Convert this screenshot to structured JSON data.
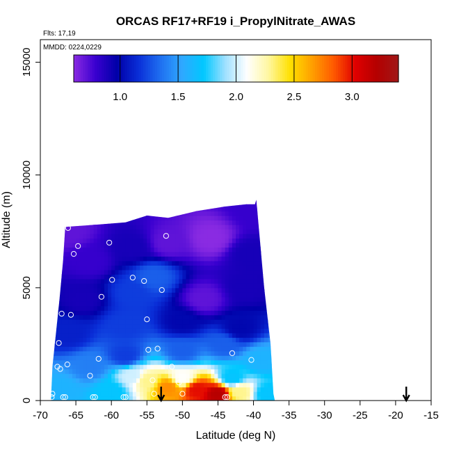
{
  "chart_data": {
    "type": "heatmap",
    "title": "ORCAS RF17+RF19 i_PropylNitrate_AWAS",
    "flights_note": "Flts: 17,19",
    "date_note": "MMDD: 0224,0229",
    "xlabel": "Latitude (deg N)",
    "ylabel": "Altitude (m)",
    "xlim": [
      -70,
      -15
    ],
    "ylim": [
      0,
      16000
    ],
    "x_ticks": [
      "-70",
      "-65",
      "-60",
      "-55",
      "-50",
      "-45",
      "-40",
      "-35",
      "-30",
      "-25",
      "-20",
      "-15"
    ],
    "y_ticks": [
      "0",
      "5000",
      "10000",
      "15000"
    ],
    "colorbar": {
      "range": [
        0.6,
        3.4
      ],
      "ticks": [
        "1.0",
        "1.5",
        "2.0",
        "2.5",
        "3.0"
      ],
      "tick_values": [
        1.0,
        1.5,
        2.0,
        2.5,
        3.0
      ],
      "colors": [
        "#8a2be2",
        "#3a00d0",
        "#0000a8",
        "#0a2fd8",
        "#1f6ff0",
        "#2fa8ff",
        "#00c8ff",
        "#9fe0ff",
        "#ffffff",
        "#fff7a0",
        "#ffe000",
        "#ffa000",
        "#ff5a00",
        "#e00000",
        "#b40000",
        "#a01818"
      ]
    },
    "curtain_outline": [
      [
        -68.5,
        0
      ],
      [
        -68.3,
        1500
      ],
      [
        -67.8,
        3000
      ],
      [
        -67.3,
        4500
      ],
      [
        -66.8,
        6200
      ],
      [
        -66.5,
        7700
      ],
      [
        -62,
        7800
      ],
      [
        -58,
        7900
      ],
      [
        -55,
        8200
      ],
      [
        -52,
        8100
      ],
      [
        -48,
        8400
      ],
      [
        -44,
        8600
      ],
      [
        -41,
        8700
      ],
      [
        -39.8,
        8700
      ],
      [
        -39.6,
        8900
      ],
      [
        -38.5,
        5000
      ],
      [
        -37.6,
        2500
      ],
      [
        -37.2,
        300
      ],
      [
        -37.0,
        0
      ]
    ],
    "field_samples": [
      {
        "lat": -67,
        "alt": 500,
        "value": 1.6
      },
      {
        "lat": -60,
        "alt": 400,
        "value": 1.7
      },
      {
        "lat": -55,
        "alt": 900,
        "value": 2.3
      },
      {
        "lat": -52,
        "alt": 600,
        "value": 2.7
      },
      {
        "lat": -48,
        "alt": 500,
        "value": 3.0
      },
      {
        "lat": -45,
        "alt": 300,
        "value": 3.2
      },
      {
        "lat": -42,
        "alt": 400,
        "value": 2.3
      },
      {
        "lat": -38,
        "alt": 300,
        "value": 1.7
      },
      {
        "lat": -57,
        "alt": 1100,
        "value": 2.0
      },
      {
        "lat": -50,
        "alt": 1000,
        "value": 2.1
      },
      {
        "lat": -43,
        "alt": 1000,
        "value": 1.7
      },
      {
        "lat": -63,
        "alt": 1500,
        "value": 1.4
      },
      {
        "lat": -58,
        "alt": 2000,
        "value": 1.2
      },
      {
        "lat": -50,
        "alt": 2200,
        "value": 1.3
      },
      {
        "lat": -44,
        "alt": 2500,
        "value": 1.3
      },
      {
        "lat": -39,
        "alt": 1800,
        "value": 1.6
      },
      {
        "lat": -66,
        "alt": 3000,
        "value": 1.1
      },
      {
        "lat": -58,
        "alt": 3300,
        "value": 1.2
      },
      {
        "lat": -50,
        "alt": 3500,
        "value": 1.0
      },
      {
        "lat": -42,
        "alt": 3200,
        "value": 1.0
      },
      {
        "lat": -64,
        "alt": 4500,
        "value": 0.9
      },
      {
        "lat": -57,
        "alt": 4800,
        "value": 1.2
      },
      {
        "lat": -54,
        "alt": 5500,
        "value": 1.3
      },
      {
        "lat": -47,
        "alt": 4500,
        "value": 0.7
      },
      {
        "lat": -41,
        "alt": 5000,
        "value": 0.9
      },
      {
        "lat": -63,
        "alt": 6200,
        "value": 0.8
      },
      {
        "lat": -57,
        "alt": 6800,
        "value": 0.9
      },
      {
        "lat": -52,
        "alt": 7000,
        "value": 0.7
      },
      {
        "lat": -46,
        "alt": 7200,
        "value": 0.6
      },
      {
        "lat": -40.5,
        "alt": 6500,
        "value": 0.9
      },
      {
        "lat": -66,
        "alt": 7500,
        "value": 0.7
      },
      {
        "lat": -40,
        "alt": 8500,
        "value": 0.8
      }
    ],
    "observations": [
      {
        "lat": -68.4,
        "alt": 150
      },
      {
        "lat": -68.3,
        "alt": 300
      },
      {
        "lat": -66.8,
        "alt": 150
      },
      {
        "lat": -66.5,
        "alt": 150
      },
      {
        "lat": -62.6,
        "alt": 150
      },
      {
        "lat": -62.3,
        "alt": 150
      },
      {
        "lat": -58.3,
        "alt": 150
      },
      {
        "lat": -58.0,
        "alt": 150
      },
      {
        "lat": -54.0,
        "alt": 300
      },
      {
        "lat": -50.0,
        "alt": 300
      },
      {
        "lat": -44.0,
        "alt": 150
      },
      {
        "lat": -43.7,
        "alt": 150
      },
      {
        "lat": -54.2,
        "alt": 900
      },
      {
        "lat": -50.5,
        "alt": 800
      },
      {
        "lat": -67.6,
        "alt": 1500
      },
      {
        "lat": -67.2,
        "alt": 1400
      },
      {
        "lat": -66.2,
        "alt": 1600
      },
      {
        "lat": -63.0,
        "alt": 1100
      },
      {
        "lat": -61.8,
        "alt": 1850
      },
      {
        "lat": -51.5,
        "alt": 1500
      },
      {
        "lat": -40.3,
        "alt": 1800
      },
      {
        "lat": -43.0,
        "alt": 2100
      },
      {
        "lat": -67.4,
        "alt": 2550
      },
      {
        "lat": -54.8,
        "alt": 2250
      },
      {
        "lat": -53.5,
        "alt": 2300
      },
      {
        "lat": -67.0,
        "alt": 3850
      },
      {
        "lat": -65.7,
        "alt": 3800
      },
      {
        "lat": -55.0,
        "alt": 3600
      },
      {
        "lat": -61.4,
        "alt": 4600
      },
      {
        "lat": -59.9,
        "alt": 5350
      },
      {
        "lat": -57.0,
        "alt": 5450
      },
      {
        "lat": -55.4,
        "alt": 5300
      },
      {
        "lat": -52.9,
        "alt": 4900
      },
      {
        "lat": -65.3,
        "alt": 6500
      },
      {
        "lat": -64.7,
        "alt": 6850
      },
      {
        "lat": -60.3,
        "alt": 7000
      },
      {
        "lat": -52.3,
        "alt": 7300
      },
      {
        "lat": -66.1,
        "alt": 7650
      }
    ],
    "arrows_lat": [
      -53.0,
      -18.5
    ],
    "grid": false
  }
}
